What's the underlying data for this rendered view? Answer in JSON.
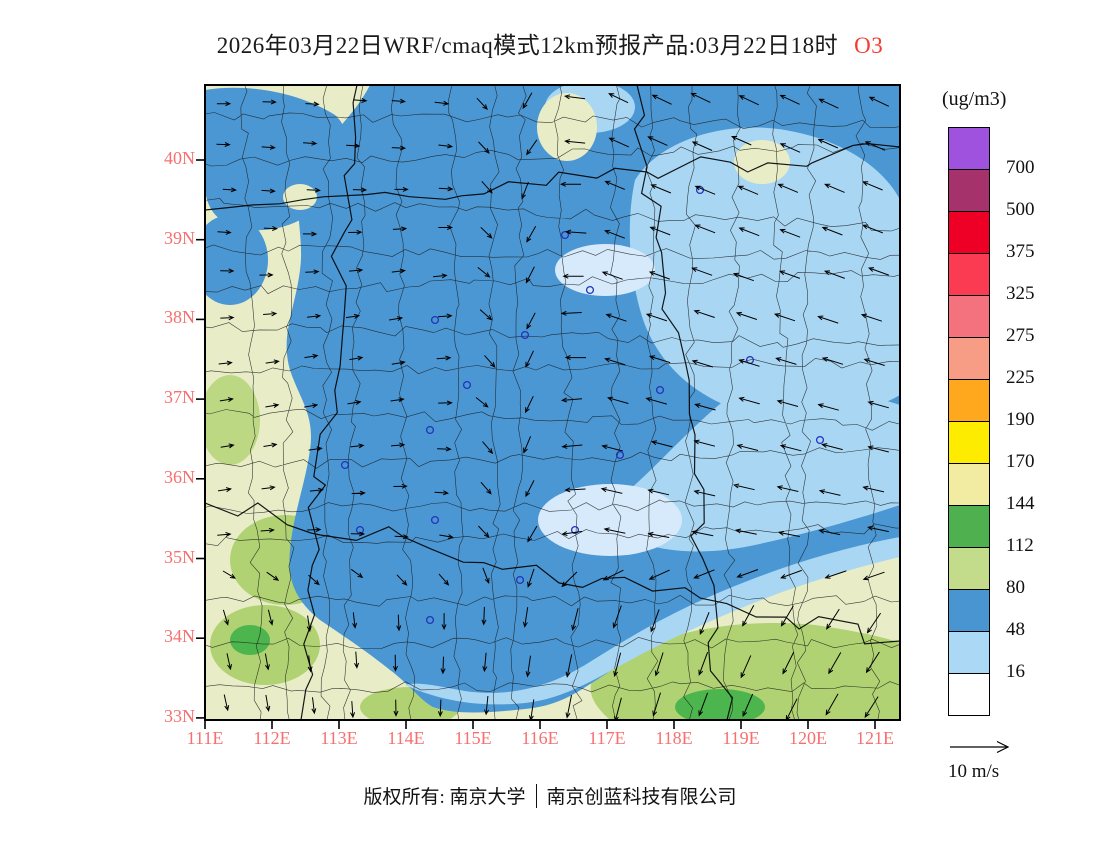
{
  "title": {
    "text": "2026年03月22日WRF/cmaq模式12km预报产品:03月22日18时",
    "species": "O3"
  },
  "axes": {
    "x_ticks": [
      "111E",
      "112E",
      "113E",
      "114E",
      "115E",
      "116E",
      "117E",
      "118E",
      "119E",
      "120E",
      "121E"
    ],
    "y_ticks": [
      "40N",
      "39N",
      "38N",
      "37N",
      "36N",
      "35N",
      "34N",
      "33N"
    ]
  },
  "legend": {
    "unit": "(ug/m3)",
    "levels": [
      "700",
      "500",
      "375",
      "325",
      "275",
      "225",
      "190",
      "170",
      "144",
      "112",
      "80",
      "48",
      "16"
    ],
    "colors": [
      "#9e52dd",
      "#a6326b",
      "#ee0026",
      "#fb3b52",
      "#f4727e",
      "#f79d85",
      "#ffa81e",
      "#fdec00",
      "#f2eca2",
      "#4fb04f",
      "#c3dc8c",
      "#4895d2",
      "#abd8f4",
      "#ffffff"
    ]
  },
  "wind_ref": {
    "label": "10 m/s"
  },
  "footer": {
    "left": "版权所有: 南京大学",
    "right": "南京创蓝科技有限公司"
  },
  "map_colors": {
    "background": "#e8edc8",
    "blue": "#4b97d3",
    "light_blue": "#a9d6f3",
    "pale_blue": "#d6eafc",
    "green": "#b0d272",
    "bright_green": "#4db54d",
    "boundary": "#1b1b1b",
    "marker": "#2233bb",
    "axis_label": "#f76f6f"
  }
}
